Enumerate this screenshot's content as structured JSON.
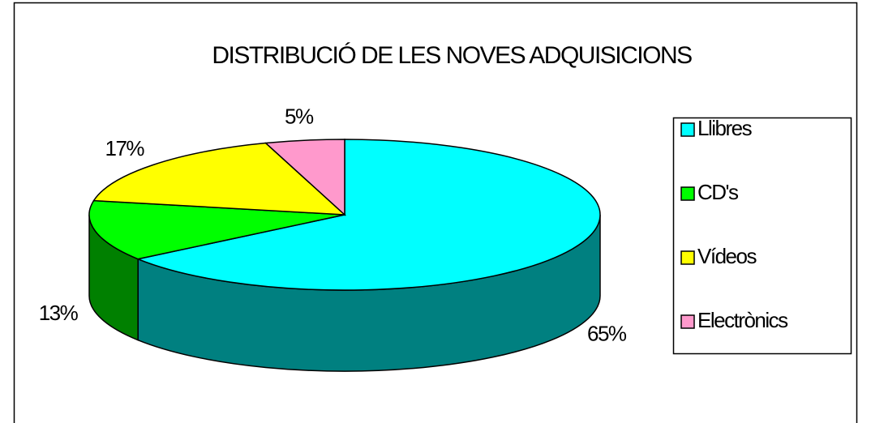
{
  "chart_data": {
    "type": "pie3d",
    "title": "DISTRIBUCIÓ DE LES NOVES ADQUISICIONS",
    "categories": [
      "Llibres",
      "CD's",
      "Vídeos",
      "Electrònics"
    ],
    "values": [
      65,
      13,
      17,
      5
    ],
    "value_labels": [
      "65%",
      "13%",
      "17%",
      "5%"
    ],
    "colors": [
      "#00ffff",
      "#00ff00",
      "#ffff00",
      "#ff99cc"
    ],
    "legend": "right"
  }
}
